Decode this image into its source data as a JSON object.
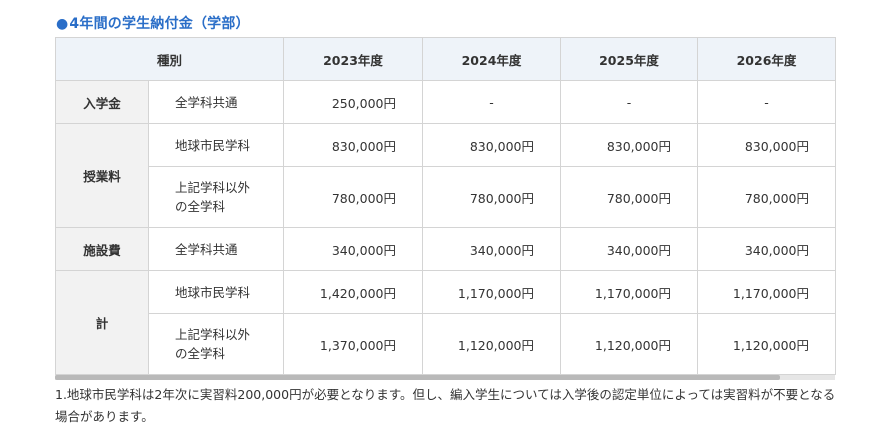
{
  "title": "4年間の学生納付金（学部）",
  "title_bullet": "●",
  "colors": {
    "title": "#2a6ec8",
    "header_bg": "#eef3f9",
    "rowhead_bg": "#f2f2f2",
    "border": "#d4d4d4"
  },
  "table": {
    "headers": [
      "種別",
      "2023年度",
      "2024年度",
      "2025年度",
      "2026年度"
    ],
    "groups": {
      "admission": {
        "label": "入学金",
        "rows": [
          {
            "sub": "全学科共通",
            "values": [
              "250,000円",
              "-",
              "-",
              "-"
            ]
          }
        ]
      },
      "tuition": {
        "label": "授業料",
        "rows": [
          {
            "sub": "地球市民学科",
            "values": [
              "830,000円",
              "830,000円",
              "830,000円",
              "830,000円"
            ]
          },
          {
            "sub": "上記学科以外\nの全学科",
            "sub_line1": "上記学科以外",
            "sub_line2": "の全学科",
            "values": [
              "780,000円",
              "780,000円",
              "780,000円",
              "780,000円"
            ]
          }
        ]
      },
      "facility": {
        "label": "施設費",
        "rows": [
          {
            "sub": "全学科共通",
            "values": [
              "340,000円",
              "340,000円",
              "340,000円",
              "340,000円"
            ]
          }
        ]
      },
      "total": {
        "label": "計",
        "rows": [
          {
            "sub": "地球市民学科",
            "values": [
              "1,420,000円",
              "1,170,000円",
              "1,170,000円",
              "1,170,000円"
            ]
          },
          {
            "sub_line1": "上記学科以外",
            "sub_line2": "の全学科",
            "values": [
              "1,370,000円",
              "1,120,000円",
              "1,120,000円",
              "1,120,000円"
            ]
          }
        ]
      }
    }
  },
  "note": "1.地球市民学科は2年次に実習料200,000円が必要となります。但し、編入学生については入学後の認定単位によっては実習料が不要となる場合があります。"
}
